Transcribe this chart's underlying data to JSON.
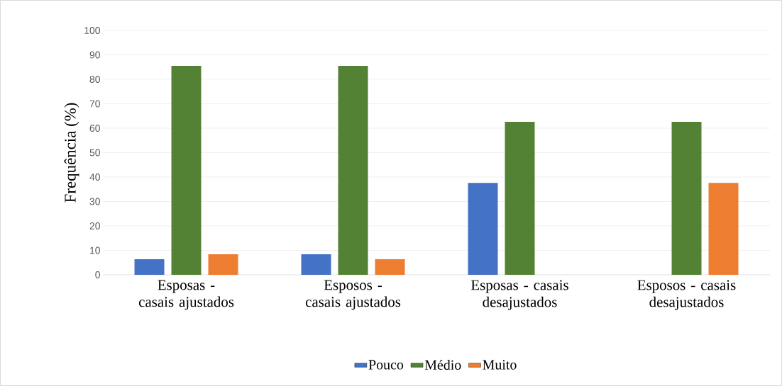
{
  "chart_data": {
    "type": "bar",
    "ylabel": "Frequência (%)",
    "categories": [
      "Esposas - casais ajustados",
      "Esposos - casais ajustados",
      "Esposas - casais desajustados",
      "Esposos - casais desajustados"
    ],
    "series": [
      {
        "name": "Pouco",
        "color": "#4472c4",
        "values": [
          6.4,
          8.4,
          37.6,
          0
        ]
      },
      {
        "name": "Médio",
        "color": "#548235",
        "values": [
          85.5,
          85.5,
          62.6,
          62.6
        ]
      },
      {
        "name": "Muito",
        "color": "#ed7d31",
        "values": [
          8.4,
          6.4,
          0,
          37.6
        ]
      }
    ],
    "ylim": [
      0,
      100
    ],
    "yticks": [
      0,
      10,
      20,
      30,
      40,
      50,
      60,
      70,
      80,
      90,
      100
    ],
    "grid": "y",
    "legend": "bottom"
  }
}
